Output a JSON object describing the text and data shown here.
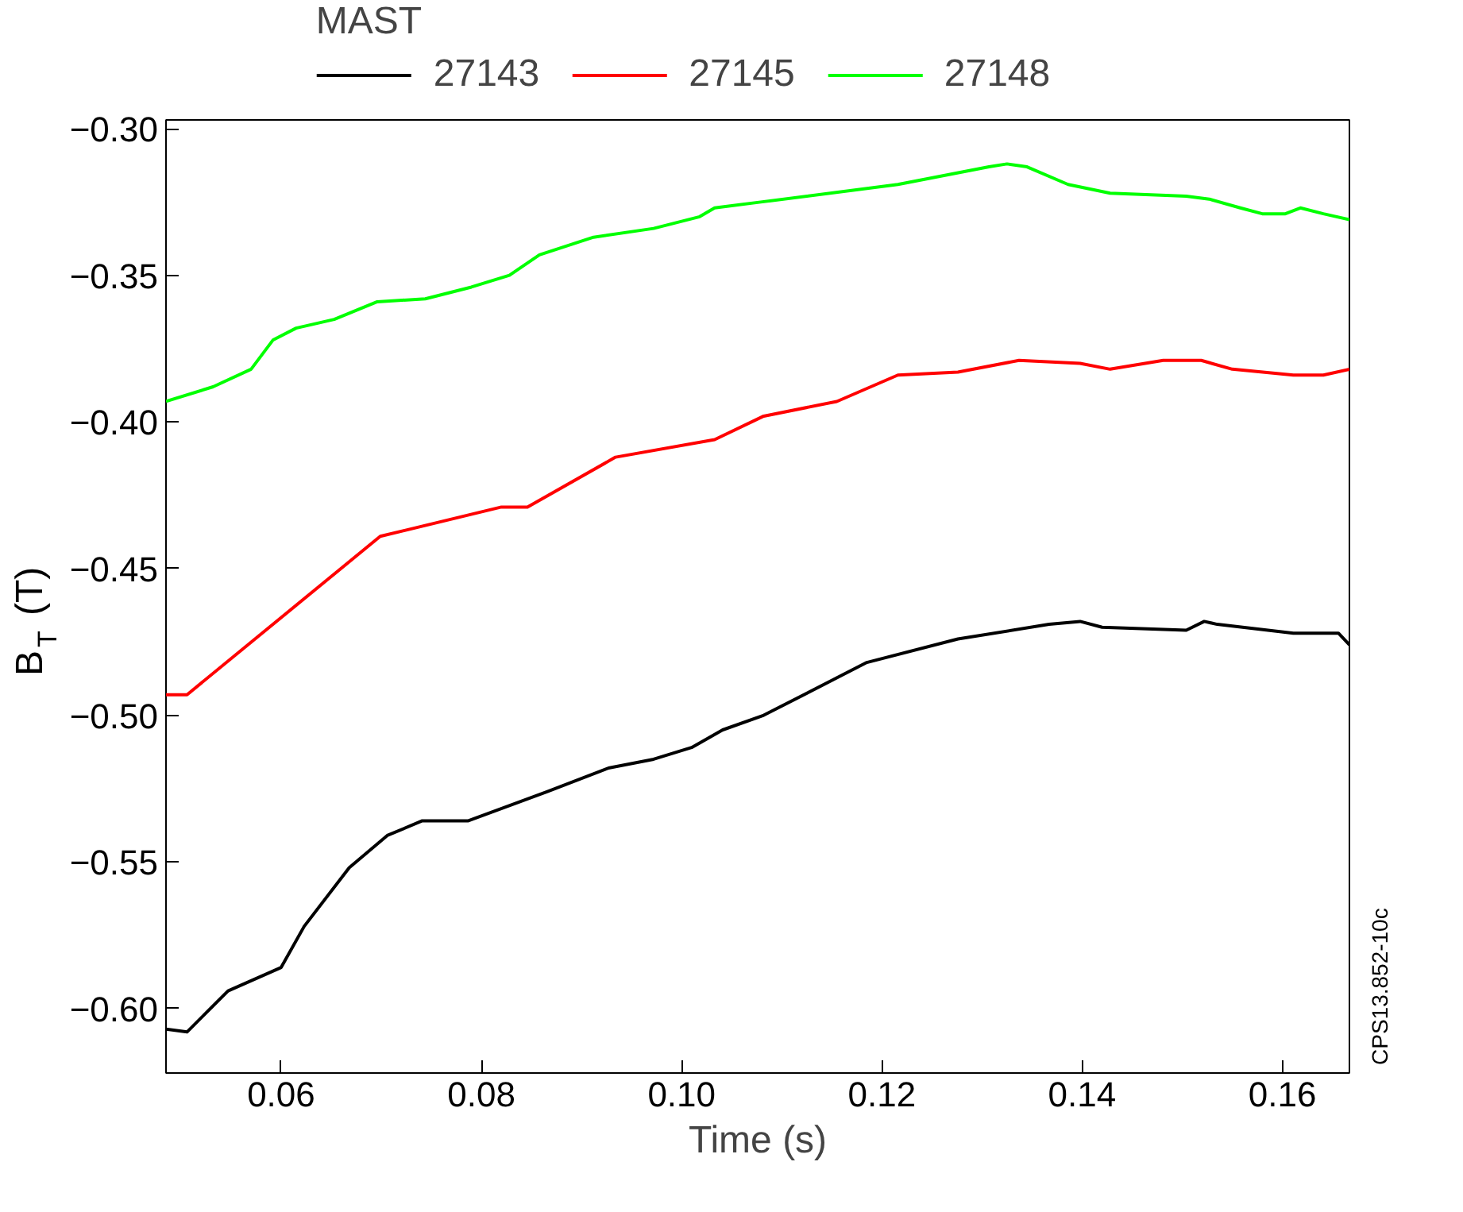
{
  "chart_data": {
    "type": "line",
    "legend_title": "MAST",
    "xlabel": "Time (s)",
    "ylabel": "B$_{T}$ (T)",
    "xlim": [
      0.0485,
      0.1667
    ],
    "ylim": [
      -0.622,
      -0.297
    ],
    "xticks": [
      {
        "value": 0.06,
        "label": "0.06"
      },
      {
        "value": 0.08,
        "label": "0.08"
      },
      {
        "value": 0.1,
        "label": "0.10"
      },
      {
        "value": 0.12,
        "label": "0.12"
      },
      {
        "value": 0.14,
        "label": "0.14"
      },
      {
        "value": 0.16,
        "label": "0.16"
      }
    ],
    "yticks": [
      {
        "value": -0.6,
        "label": "−0.60"
      },
      {
        "value": -0.55,
        "label": "−0.55"
      },
      {
        "value": -0.5,
        "label": "−0.50"
      },
      {
        "value": -0.45,
        "label": "−0.45"
      },
      {
        "value": -0.4,
        "label": "−0.40"
      },
      {
        "value": -0.35,
        "label": "−0.35"
      },
      {
        "value": -0.3,
        "label": "−0.30"
      }
    ],
    "grid": false,
    "legend": "top",
    "line_style": "solid",
    "marker": "none",
    "annotations": [
      "CPS13.852-10c"
    ],
    "series": [
      {
        "name": "27143",
        "color": "#000000",
        "x": [
          0.0485,
          0.0506,
          0.0547,
          0.06,
          0.0623,
          0.0668,
          0.0706,
          0.0741,
          0.0787,
          0.0866,
          0.0927,
          0.0972,
          0.101,
          0.1041,
          0.1082,
          0.1185,
          0.1276,
          0.1367,
          0.1398,
          0.142,
          0.1504,
          0.1522,
          0.1535,
          0.1611,
          0.1656,
          0.1667
        ],
        "values": [
          -0.607,
          -0.608,
          -0.594,
          -0.586,
          -0.572,
          -0.552,
          -0.541,
          -0.536,
          -0.536,
          -0.526,
          -0.518,
          -0.515,
          -0.511,
          -0.505,
          -0.5,
          -0.482,
          -0.474,
          -0.469,
          -0.468,
          -0.47,
          -0.471,
          -0.468,
          -0.469,
          -0.472,
          -0.472,
          -0.476
        ]
      },
      {
        "name": "27145",
        "color": "#ff0000",
        "x": [
          0.0485,
          0.0506,
          0.0699,
          0.082,
          0.0846,
          0.0934,
          0.1033,
          0.1082,
          0.1155,
          0.1216,
          0.1276,
          0.1337,
          0.1398,
          0.1428,
          0.1481,
          0.1519,
          0.155,
          0.1611,
          0.1641,
          0.1667
        ],
        "values": [
          -0.493,
          -0.493,
          -0.439,
          -0.429,
          -0.429,
          -0.412,
          -0.406,
          -0.398,
          -0.393,
          -0.384,
          -0.383,
          -0.379,
          -0.38,
          -0.382,
          -0.379,
          -0.379,
          -0.382,
          -0.384,
          -0.384,
          -0.382
        ]
      },
      {
        "name": "27148",
        "color": "#00ff00",
        "x": [
          0.0485,
          0.0532,
          0.057,
          0.0592,
          0.0615,
          0.0653,
          0.0696,
          0.0744,
          0.079,
          0.0828,
          0.0858,
          0.0912,
          0.0972,
          0.1018,
          0.1033,
          0.1079,
          0.1216,
          0.1307,
          0.1325,
          0.1345,
          0.1386,
          0.1428,
          0.1504,
          0.1527,
          0.1558,
          0.158,
          0.1603,
          0.1618,
          0.1641,
          0.1667
        ],
        "values": [
          -0.393,
          -0.388,
          -0.382,
          -0.372,
          -0.368,
          -0.365,
          -0.359,
          -0.358,
          -0.354,
          -0.35,
          -0.343,
          -0.337,
          -0.334,
          -0.33,
          -0.327,
          -0.325,
          -0.319,
          -0.313,
          -0.312,
          -0.313,
          -0.319,
          -0.322,
          -0.323,
          -0.324,
          -0.327,
          -0.329,
          -0.329,
          -0.327,
          -0.329,
          -0.331
        ]
      }
    ]
  }
}
